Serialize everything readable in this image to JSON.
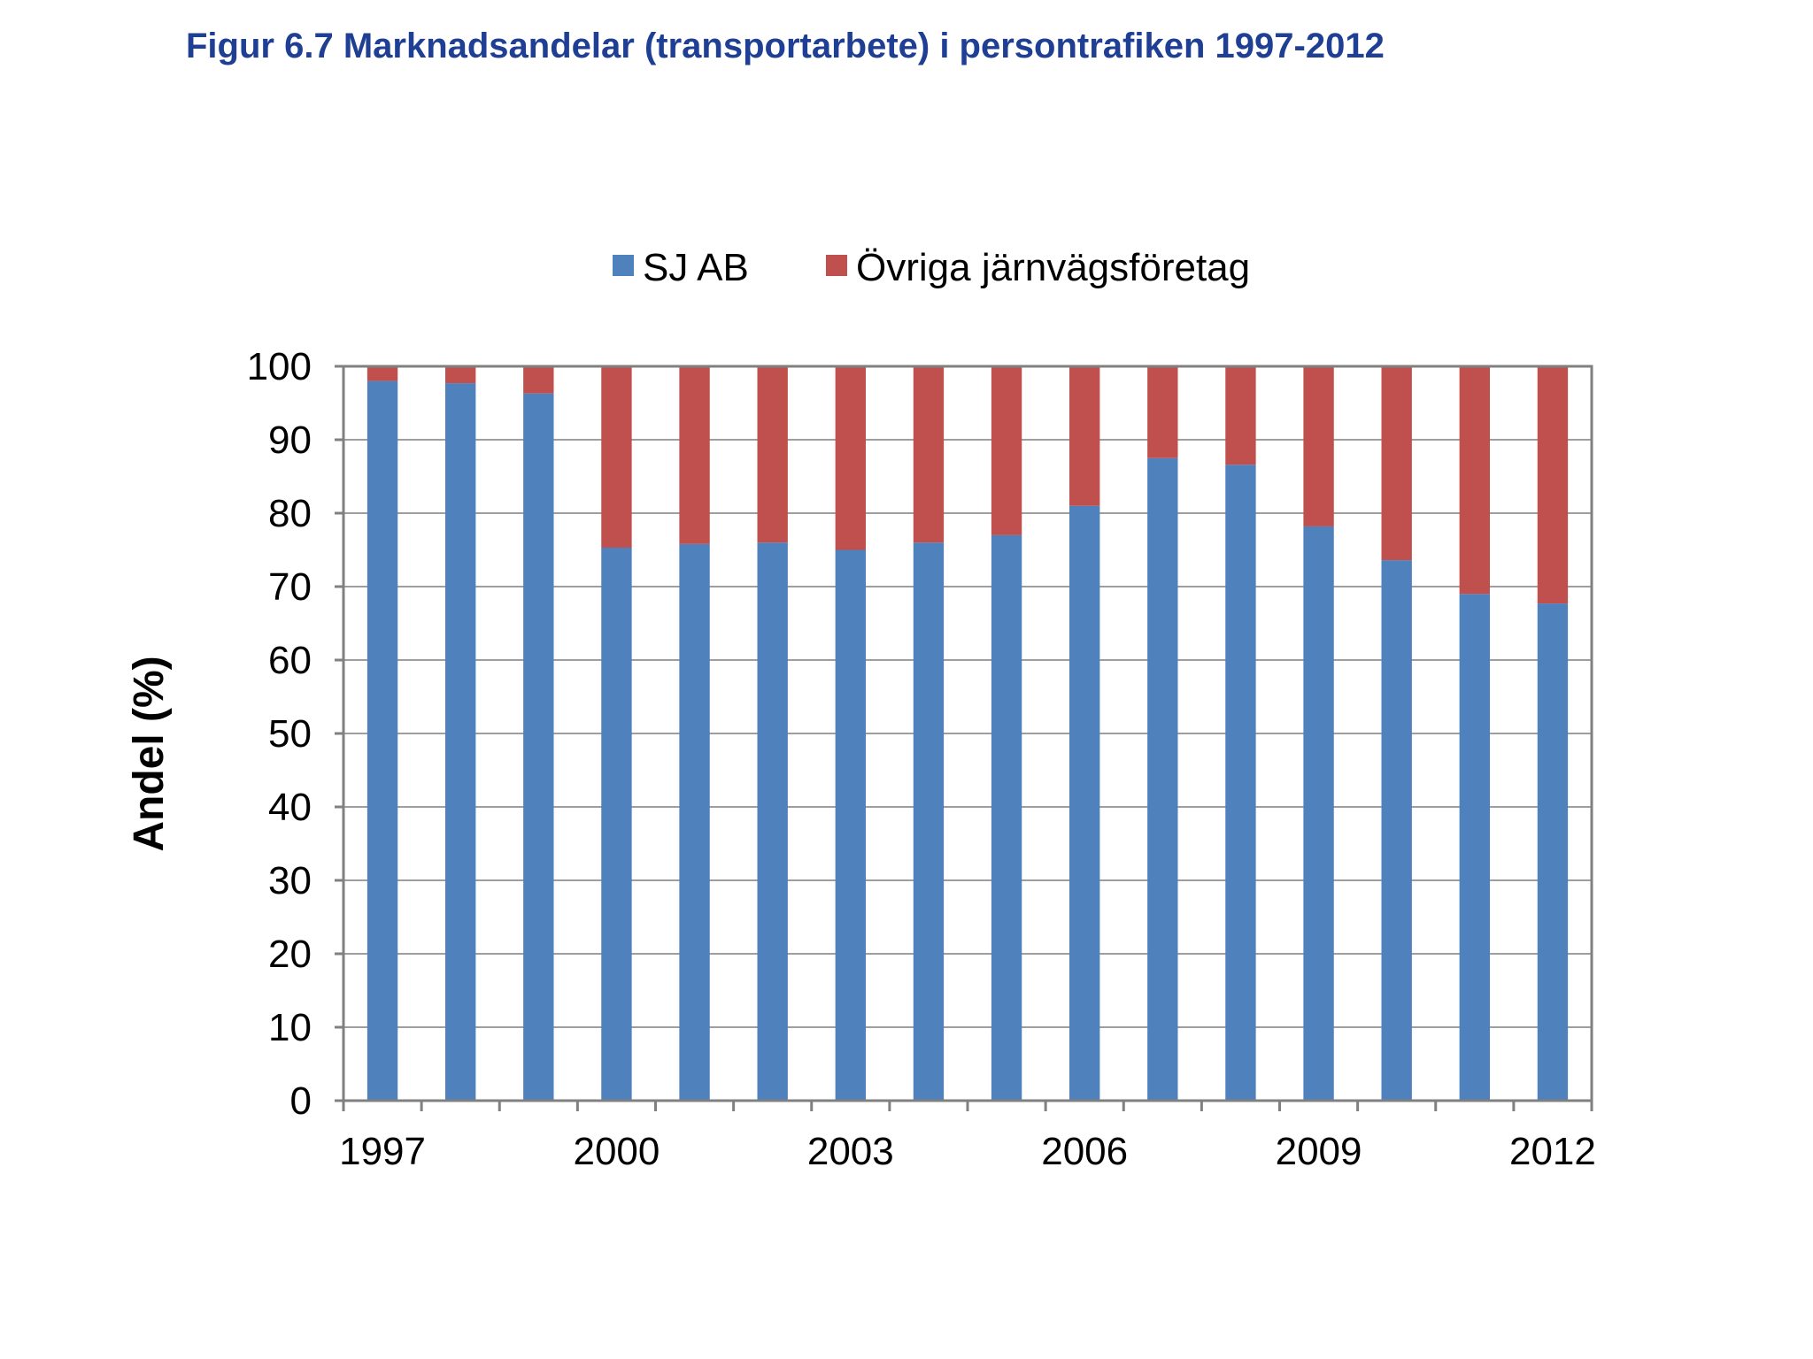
{
  "title": "Figur 6.7 Marknadsandelar (transportarbete) i persontrafiken 1997-2012",
  "chart_data": {
    "type": "bar",
    "stacked": true,
    "categories": [
      "1997",
      "1998",
      "1999",
      "2000",
      "2001",
      "2002",
      "2003",
      "2004",
      "2005",
      "2006",
      "2007",
      "2008",
      "2009",
      "2010",
      "2011",
      "2012"
    ],
    "x_tick_labels": [
      "1997",
      "2000",
      "2003",
      "2006",
      "2009",
      "2012"
    ],
    "series": [
      {
        "name": "SJ AB",
        "color": "#4f81bd",
        "values": [
          98,
          97.7,
          96.3,
          75.3,
          75.8,
          76,
          75,
          76,
          77,
          81,
          87.5,
          86.6,
          78.2,
          73.6,
          69,
          67.7
        ]
      },
      {
        "name": "Övriga järnvägsföretag",
        "color": "#c0504d",
        "values": [
          2,
          2.3,
          3.7,
          24.7,
          24.2,
          24,
          25,
          24,
          23,
          19,
          12.5,
          13.4,
          21.8,
          26.4,
          31,
          32.3
        ]
      }
    ],
    "ylabel": "Andel (%)",
    "xlabel": "",
    "ylim": [
      0,
      100
    ],
    "y_ticks": [
      0,
      10,
      20,
      30,
      40,
      50,
      60,
      70,
      80,
      90,
      100
    ],
    "grid": true,
    "legend_position": "top"
  }
}
